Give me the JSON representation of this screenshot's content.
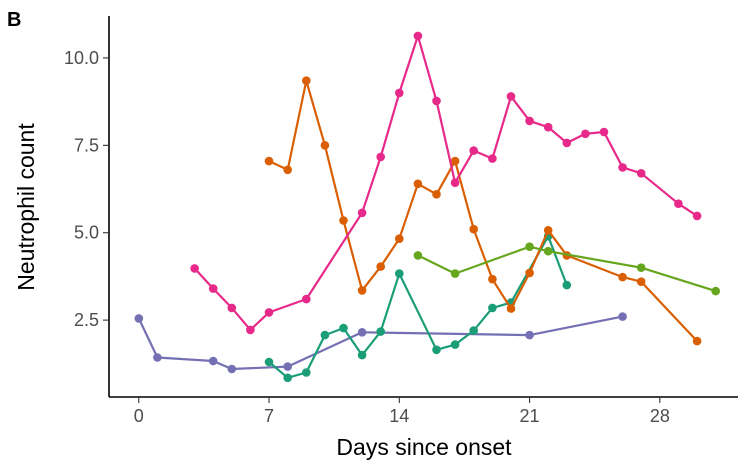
{
  "panel_tag": "B",
  "chart_data": {
    "type": "line",
    "xlabel": "Days since onset",
    "ylabel": "Neutrophil count",
    "xlim": [
      -1.6,
      32.2
    ],
    "ylim": [
      0.3,
      11.2
    ],
    "xticks": [
      0,
      7,
      14,
      21,
      28
    ],
    "xtick_labels": [
      "0",
      "7",
      "14",
      "21",
      "28"
    ],
    "yticks": [
      2.5,
      5.0,
      7.5,
      10.0
    ],
    "ytick_labels": [
      "2.5",
      "5.0",
      "7.5",
      "10.0"
    ],
    "grid": false,
    "legend": "none",
    "series": [
      {
        "color": "#7570B3",
        "points": [
          [
            0,
            2.55
          ],
          [
            1,
            1.43
          ],
          [
            4,
            1.33
          ],
          [
            5,
            1.1
          ],
          [
            8,
            1.17
          ],
          [
            12,
            2.15
          ],
          [
            21,
            2.07
          ],
          [
            26,
            2.6
          ]
        ]
      },
      {
        "color": "#1B9E77",
        "points": [
          [
            7,
            1.3
          ],
          [
            8,
            0.85
          ],
          [
            9,
            1.0
          ],
          [
            10,
            2.07
          ],
          [
            11,
            2.27
          ],
          [
            12,
            1.5
          ],
          [
            13,
            2.17
          ],
          [
            14,
            3.83
          ],
          [
            16,
            1.65
          ],
          [
            17,
            1.8
          ],
          [
            18,
            2.2
          ],
          [
            19,
            2.85
          ],
          [
            20,
            3.0
          ],
          [
            22,
            4.9
          ],
          [
            23,
            3.5
          ]
        ]
      },
      {
        "color": "#D95F02",
        "points": [
          [
            7,
            7.05
          ],
          [
            8,
            6.8
          ],
          [
            9,
            9.35
          ],
          [
            10,
            7.5
          ],
          [
            11,
            5.35
          ],
          [
            12,
            3.35
          ],
          [
            13,
            4.03
          ],
          [
            14,
            4.83
          ],
          [
            15,
            6.4
          ],
          [
            16,
            6.1
          ],
          [
            17,
            7.05
          ],
          [
            18,
            5.1
          ],
          [
            19,
            3.67
          ],
          [
            20,
            2.83
          ],
          [
            21,
            3.85
          ],
          [
            22,
            5.07
          ],
          [
            23,
            4.35
          ],
          [
            26,
            3.73
          ],
          [
            27,
            3.6
          ],
          [
            30,
            1.9
          ]
        ]
      },
      {
        "color": "#E7298A",
        "points": [
          [
            3,
            3.98
          ],
          [
            4,
            3.4
          ],
          [
            5,
            2.85
          ],
          [
            6,
            2.22
          ],
          [
            7,
            2.72
          ],
          [
            9,
            3.1
          ],
          [
            12,
            5.57
          ],
          [
            13,
            7.17
          ],
          [
            14,
            9.0
          ],
          [
            15,
            10.63
          ],
          [
            16,
            8.77
          ],
          [
            17,
            6.43
          ],
          [
            18,
            7.35
          ],
          [
            19,
            7.12
          ],
          [
            20,
            8.9
          ],
          [
            21,
            8.2
          ],
          [
            22,
            8.02
          ],
          [
            23,
            7.57
          ],
          [
            24,
            7.83
          ],
          [
            25,
            7.88
          ],
          [
            26,
            6.87
          ],
          [
            27,
            6.7
          ],
          [
            29,
            5.83
          ],
          [
            30,
            5.48
          ]
        ]
      },
      {
        "color": "#66A61E",
        "points": [
          [
            15,
            4.35
          ],
          [
            17,
            3.83
          ],
          [
            21,
            4.6
          ],
          [
            22,
            4.47
          ],
          [
            27,
            4.0
          ],
          [
            31,
            3.33
          ]
        ]
      }
    ]
  }
}
